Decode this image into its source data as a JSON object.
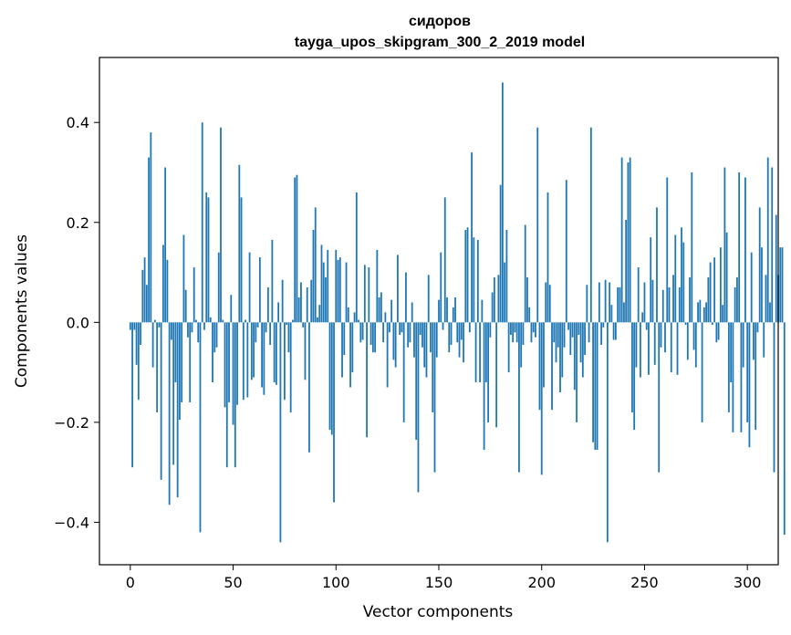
{
  "chart_data": {
    "type": "bar",
    "title": "сидоров",
    "subtitle": "tayga_upos_skipgram_300_2_2019 model",
    "xlabel": "Vector components",
    "ylabel": "Components values",
    "xlim": [
      -15,
      315
    ],
    "ylim": [
      -0.485,
      0.53
    ],
    "xticks": [
      0,
      50,
      100,
      150,
      200,
      250,
      300
    ],
    "yticks": [
      -0.4,
      -0.2,
      0.0,
      0.2,
      0.4
    ],
    "ytick_labels": [
      "−0.4",
      "−0.2",
      "0.0",
      "0.2",
      "0.4"
    ],
    "grid": false,
    "bar_color": "#1f77b4",
    "values": [
      -0.015,
      -0.29,
      -0.015,
      -0.085,
      -0.155,
      -0.045,
      0.105,
      0.13,
      0.075,
      0.33,
      0.38,
      -0.09,
      0.005,
      -0.18,
      -0.01,
      -0.315,
      0.155,
      0.31,
      0.125,
      -0.365,
      -0.035,
      -0.285,
      -0.12,
      -0.35,
      -0.195,
      -0.16,
      0.175,
      0.065,
      -0.03,
      -0.16,
      -0.02,
      0.11,
      0.005,
      -0.04,
      -0.42,
      0.4,
      -0.015,
      0.26,
      0.25,
      0.01,
      -0.12,
      -0.06,
      -0.05,
      0.14,
      0.39,
      0.005,
      -0.17,
      -0.29,
      -0.16,
      0.055,
      -0.205,
      -0.29,
      -0.165,
      0.315,
      0.25,
      -0.155,
      0.005,
      -0.15,
      0.14,
      -0.115,
      -0.11,
      -0.04,
      -0.01,
      0.13,
      -0.13,
      -0.145,
      -0.02,
      0.07,
      -0.045,
      0.165,
      -0.12,
      -0.125,
      0.04,
      -0.44,
      0.085,
      -0.155,
      -0.005,
      -0.06,
      -0.18,
      0.005,
      0.29,
      0.295,
      0.05,
      0.08,
      -0.01,
      -0.115,
      0.07,
      -0.26,
      0.085,
      0.185,
      0.23,
      0.01,
      0.035,
      0.155,
      0.12,
      0.09,
      0.145,
      -0.215,
      -0.225,
      -0.36,
      0.145,
      0.125,
      0.13,
      -0.11,
      -0.065,
      0.12,
      0.03,
      -0.13,
      -0.1,
      0.02,
      0.26,
      0.005,
      -0.04,
      -0.035,
      0.115,
      -0.23,
      0.11,
      -0.045,
      -0.06,
      -0.06,
      0.145,
      0.05,
      0.06,
      -0.04,
      0.02,
      -0.13,
      -0.02,
      0.045,
      -0.075,
      -0.09,
      0.135,
      -0.025,
      -0.02,
      -0.2,
      0.1,
      -0.05,
      -0.04,
      0.04,
      -0.07,
      -0.235,
      -0.34,
      -0.025,
      -0.05,
      -0.09,
      -0.11,
      0.095,
      -0.06,
      -0.18,
      -0.3,
      -0.07,
      0.045,
      0.14,
      -0.015,
      0.25,
      0.05,
      -0.06,
      -0.045,
      0.03,
      0.05,
      -0.04,
      -0.07,
      -0.035,
      -0.08,
      0.185,
      0.19,
      -0.02,
      0.34,
      0.17,
      -0.12,
      0.165,
      -0.12,
      0.045,
      -0.255,
      -0.12,
      -0.2,
      -0.03,
      0.06,
      0.09,
      -0.21,
      0.095,
      0.275,
      0.48,
      0.12,
      0.185,
      -0.1,
      -0.025,
      -0.04,
      -0.02,
      -0.04,
      -0.3,
      -0.09,
      -0.045,
      0.195,
      0.09,
      0.03,
      -0.04,
      -0.02,
      -0.03,
      0.39,
      -0.175,
      -0.305,
      -0.13,
      0.08,
      0.26,
      0.075,
      -0.175,
      -0.04,
      -0.08,
      -0.05,
      -0.14,
      -0.11,
      -0.05,
      0.285,
      -0.015,
      -0.065,
      -0.03,
      -0.135,
      -0.2,
      -0.025,
      -0.08,
      -0.11,
      -0.065,
      0.075,
      -0.04,
      0.39,
      -0.24,
      -0.255,
      -0.255,
      0.08,
      -0.045,
      -0.01,
      0.085,
      -0.44,
      0.08,
      0.035,
      -0.035,
      -0.035,
      0.07,
      0.07,
      0.33,
      0.04,
      0.205,
      0.32,
      0.33,
      -0.18,
      -0.215,
      -0.09,
      0.11,
      -0.11,
      0.02,
      0.08,
      -0.015,
      -0.105,
      0.17,
      0.085,
      -0.085,
      0.23,
      -0.3,
      -0.05,
      0.065,
      -0.06,
      0.29,
      0.07,
      -0.1,
      0.095,
      0.175,
      -0.105,
      0.07,
      0.19,
      0.16,
      -0.005,
      -0.075,
      0.09,
      0.3,
      -0.055,
      -0.09,
      0.04,
      0.045,
      -0.2,
      0.03,
      0.04,
      0.09,
      0.12,
      -0.005,
      0.13,
      -0.04,
      -0.035,
      0.15,
      0.035,
      0.31,
      0.18,
      -0.18,
      -0.12,
      -0.22,
      0.07,
      0.09,
      0.3,
      -0.22,
      -0.09,
      0.29,
      -0.2,
      -0.25,
      0.14,
      -0.075,
      -0.215,
      -0.02,
      0.23,
      0.15,
      -0.07,
      0.095,
      0.33,
      0.04,
      0.31,
      -0.3,
      0.215,
      0.095,
      0.15,
      0.15,
      -0.425
    ]
  }
}
